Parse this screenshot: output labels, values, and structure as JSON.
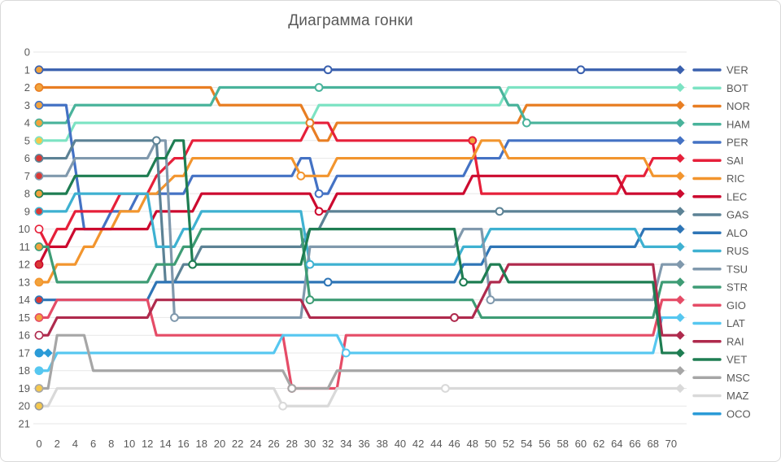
{
  "title": "Диаграмма гонки",
  "chart_data": {
    "type": "line",
    "title": "Диаграмма гонки",
    "xlabel": "",
    "ylabel": "",
    "x_ticks": [
      0,
      2,
      4,
      6,
      8,
      10,
      12,
      14,
      16,
      18,
      20,
      22,
      24,
      26,
      28,
      30,
      32,
      34,
      36,
      38,
      40,
      42,
      44,
      46,
      48,
      50,
      52,
      54,
      56,
      58,
      60,
      62,
      64,
      66,
      68,
      70
    ],
    "y_ticks": [
      0,
      1,
      2,
      3,
      4,
      5,
      6,
      7,
      8,
      9,
      10,
      11,
      12,
      13,
      14,
      15,
      16,
      17,
      18,
      19,
      20,
      21
    ],
    "x_range": [
      0,
      71
    ],
    "y_range": [
      0,
      21
    ],
    "y_inverted": true,
    "grid": "horizontal",
    "legend_position": "right",
    "series": [
      {
        "name": "VER",
        "color": "#3A60AE",
        "start_dot": "#F2A33C",
        "pit_laps": [
          32,
          60
        ],
        "dnf": false,
        "points": [
          [
            0,
            1
          ],
          [
            71,
            1
          ]
        ]
      },
      {
        "name": "BOT",
        "color": "#7CE3C3",
        "start_dot": "#F5C84C",
        "pit_laps": [
          30
        ],
        "dnf": false,
        "points": [
          [
            0,
            5
          ],
          [
            3,
            5
          ],
          [
            4,
            4
          ],
          [
            30,
            4
          ],
          [
            31,
            3
          ],
          [
            51,
            3
          ],
          [
            52,
            2
          ],
          [
            71,
            2
          ]
        ]
      },
      {
        "name": "NOR",
        "color": "#E87E23",
        "start_dot": "#F2A33C",
        "pit_laps": [
          30
        ],
        "dnf": false,
        "points": [
          [
            0,
            2
          ],
          [
            19,
            2
          ],
          [
            20,
            3
          ],
          [
            29,
            3
          ],
          [
            31,
            5
          ],
          [
            32,
            5
          ],
          [
            33,
            4
          ],
          [
            53,
            4
          ],
          [
            54,
            3
          ],
          [
            71,
            3
          ]
        ]
      },
      {
        "name": "HAM",
        "color": "#49B39B",
        "start_dot": "#F2A33C",
        "pit_laps": [
          31,
          54
        ],
        "dnf": false,
        "points": [
          [
            0,
            4
          ],
          [
            3,
            4
          ],
          [
            4,
            3
          ],
          [
            19,
            3
          ],
          [
            20,
            2
          ],
          [
            51,
            2
          ],
          [
            52,
            3
          ],
          [
            53,
            3
          ],
          [
            54,
            4
          ],
          [
            71,
            4
          ]
        ]
      },
      {
        "name": "PER",
        "color": "#4472C4",
        "start_dot": "#F2A33C",
        "pit_laps": [
          31
        ],
        "dnf": false,
        "points": [
          [
            0,
            3
          ],
          [
            3,
            3
          ],
          [
            5,
            10
          ],
          [
            7,
            10
          ],
          [
            8,
            9
          ],
          [
            10,
            9
          ],
          [
            11,
            8
          ],
          [
            16,
            8
          ],
          [
            17,
            7
          ],
          [
            28,
            7
          ],
          [
            29,
            6
          ],
          [
            30,
            6
          ],
          [
            31,
            8
          ],
          [
            32,
            8
          ],
          [
            33,
            7
          ],
          [
            47,
            7
          ],
          [
            48,
            6
          ],
          [
            51,
            6
          ],
          [
            52,
            5
          ],
          [
            71,
            5
          ]
        ]
      },
      {
        "name": "SAI",
        "color": "#E6203A",
        "start_dot": "#FFFFFF",
        "pit_laps": [
          48
        ],
        "pit_fill": "#F2A33C",
        "dnf": false,
        "points": [
          [
            0,
            10
          ],
          [
            1,
            11
          ],
          [
            2,
            10
          ],
          [
            3,
            10
          ],
          [
            4,
            9
          ],
          [
            8,
            9
          ],
          [
            9,
            8
          ],
          [
            12,
            8
          ],
          [
            13,
            7
          ],
          [
            15,
            6
          ],
          [
            16,
            6
          ],
          [
            17,
            5
          ],
          [
            29,
            5
          ],
          [
            30,
            4
          ],
          [
            32,
            4
          ],
          [
            33,
            5
          ],
          [
            48,
            5
          ],
          [
            49,
            8
          ],
          [
            64,
            8
          ],
          [
            65,
            7
          ],
          [
            67,
            7
          ],
          [
            68,
            6
          ],
          [
            71,
            6
          ]
        ]
      },
      {
        "name": "RIC",
        "color": "#F2952E",
        "start_dot": "#F2A33C",
        "pit_laps": [
          29
        ],
        "dnf": false,
        "points": [
          [
            0,
            13
          ],
          [
            1,
            13
          ],
          [
            2,
            12
          ],
          [
            4,
            12
          ],
          [
            5,
            11
          ],
          [
            6,
            11
          ],
          [
            7,
            10
          ],
          [
            8,
            10
          ],
          [
            9,
            9
          ],
          [
            11,
            9
          ],
          [
            12,
            8
          ],
          [
            13,
            8
          ],
          [
            15,
            7
          ],
          [
            16,
            7
          ],
          [
            17,
            6
          ],
          [
            28,
            6
          ],
          [
            29,
            7
          ],
          [
            32,
            7
          ],
          [
            33,
            6
          ],
          [
            48,
            6
          ],
          [
            49,
            5
          ],
          [
            51,
            5
          ],
          [
            52,
            6
          ],
          [
            67,
            6
          ],
          [
            68,
            7
          ],
          [
            71,
            7
          ]
        ]
      },
      {
        "name": "LEC",
        "color": "#CC0A2F",
        "start_dot": "#D93A36",
        "pit_laps": [
          31
        ],
        "dnf": false,
        "points": [
          [
            0,
            12
          ],
          [
            1,
            11
          ],
          [
            3,
            11
          ],
          [
            4,
            10
          ],
          [
            12,
            10
          ],
          [
            13,
            9
          ],
          [
            17,
            9
          ],
          [
            18,
            8
          ],
          [
            30,
            8
          ],
          [
            31,
            9
          ],
          [
            32,
            9
          ],
          [
            33,
            8
          ],
          [
            47,
            8
          ],
          [
            48,
            7
          ],
          [
            64,
            7
          ],
          [
            65,
            8
          ],
          [
            71,
            8
          ]
        ]
      },
      {
        "name": "GAS",
        "color": "#5C8295",
        "start_dot": "#D93A36",
        "pit_laps": [
          13,
          51
        ],
        "dnf": false,
        "points": [
          [
            0,
            6
          ],
          [
            3,
            6
          ],
          [
            4,
            5
          ],
          [
            13,
            5
          ],
          [
            14,
            13
          ],
          [
            15,
            13
          ],
          [
            16,
            12
          ],
          [
            17,
            12
          ],
          [
            18,
            11
          ],
          [
            29,
            11
          ],
          [
            30,
            10
          ],
          [
            31,
            10
          ],
          [
            32,
            9
          ],
          [
            71,
            9
          ]
        ]
      },
      {
        "name": "ALO",
        "color": "#2E75B6",
        "start_dot": "#D93A36",
        "pit_laps": [
          32
        ],
        "dnf": false,
        "points": [
          [
            0,
            14
          ],
          [
            12,
            14
          ],
          [
            13,
            13
          ],
          [
            46,
            13
          ],
          [
            47,
            12
          ],
          [
            49,
            12
          ],
          [
            50,
            11
          ],
          [
            66,
            11
          ],
          [
            67,
            10
          ],
          [
            71,
            10
          ]
        ]
      },
      {
        "name": "RUS",
        "color": "#3EB1D1",
        "start_dot": "#D93A36",
        "pit_laps": [
          30
        ],
        "dnf": false,
        "points": [
          [
            0,
            9
          ],
          [
            3,
            9
          ],
          [
            4,
            8
          ],
          [
            12,
            8
          ],
          [
            13,
            11
          ],
          [
            15,
            11
          ],
          [
            16,
            10
          ],
          [
            17,
            10
          ],
          [
            18,
            9
          ],
          [
            29,
            9
          ],
          [
            30,
            12
          ],
          [
            46,
            12
          ],
          [
            47,
            11
          ],
          [
            49,
            11
          ],
          [
            50,
            10
          ],
          [
            66,
            10
          ],
          [
            67,
            11
          ],
          [
            71,
            11
          ]
        ]
      },
      {
        "name": "TSU",
        "color": "#8099AD",
        "start_dot": "#D93A36",
        "pit_laps": [
          15,
          50
        ],
        "dnf": false,
        "points": [
          [
            0,
            7
          ],
          [
            3,
            7
          ],
          [
            4,
            6
          ],
          [
            12,
            6
          ],
          [
            13,
            5
          ],
          [
            14,
            5
          ],
          [
            15,
            15
          ],
          [
            29,
            15
          ],
          [
            30,
            11
          ],
          [
            46,
            11
          ],
          [
            47,
            10
          ],
          [
            49,
            10
          ],
          [
            50,
            14
          ],
          [
            68,
            14
          ],
          [
            69,
            12
          ],
          [
            71,
            12
          ]
        ]
      },
      {
        "name": "STR",
        "color": "#3E9C75",
        "start_dot": "#F2A33C",
        "pit_laps": [
          30
        ],
        "dnf": false,
        "points": [
          [
            0,
            11
          ],
          [
            1,
            11
          ],
          [
            2,
            13
          ],
          [
            12,
            13
          ],
          [
            13,
            12
          ],
          [
            15,
            12
          ],
          [
            16,
            11
          ],
          [
            17,
            11
          ],
          [
            18,
            10
          ],
          [
            29,
            10
          ],
          [
            30,
            14
          ],
          [
            48,
            14
          ],
          [
            49,
            15
          ],
          [
            68,
            15
          ],
          [
            69,
            13
          ],
          [
            71,
            13
          ]
        ]
      },
      {
        "name": "GIO",
        "color": "#E54C67",
        "start_dot": "#F2A33C",
        "pit_laps": [
          28
        ],
        "dnf": false,
        "points": [
          [
            0,
            15
          ],
          [
            1,
            15
          ],
          [
            2,
            14
          ],
          [
            12,
            14
          ],
          [
            13,
            16
          ],
          [
            27,
            16
          ],
          [
            28,
            19
          ],
          [
            33,
            19
          ],
          [
            34,
            16
          ],
          [
            68,
            16
          ],
          [
            69,
            14
          ],
          [
            71,
            14
          ]
        ]
      },
      {
        "name": "LAT",
        "color": "#56C7F0",
        "start_dot": "#56C7F0",
        "pit_laps": [
          34
        ],
        "dnf": false,
        "points": [
          [
            0,
            18
          ],
          [
            1,
            18
          ],
          [
            2,
            17
          ],
          [
            26,
            17
          ],
          [
            27,
            16
          ],
          [
            33,
            16
          ],
          [
            34,
            17
          ],
          [
            68,
            17
          ],
          [
            69,
            15
          ],
          [
            71,
            15
          ]
        ]
      },
      {
        "name": "RAI",
        "color": "#AF2A4D",
        "start_dot": "#FFFFFF",
        "pit_laps": [
          46
        ],
        "dnf": false,
        "points": [
          [
            0,
            16
          ],
          [
            1,
            16
          ],
          [
            2,
            15
          ],
          [
            12,
            15
          ],
          [
            13,
            14
          ],
          [
            29,
            14
          ],
          [
            30,
            15
          ],
          [
            48,
            15
          ],
          [
            49,
            14
          ],
          [
            50,
            13
          ],
          [
            51,
            13
          ],
          [
            52,
            12
          ],
          [
            68,
            12
          ],
          [
            69,
            16
          ],
          [
            71,
            16
          ]
        ]
      },
      {
        "name": "VET",
        "color": "#1E7D52",
        "start_dot": "#F2A33C",
        "pit_laps": [
          17,
          47
        ],
        "dnf": false,
        "points": [
          [
            0,
            8
          ],
          [
            3,
            8
          ],
          [
            4,
            7
          ],
          [
            12,
            7
          ],
          [
            13,
            6
          ],
          [
            14,
            6
          ],
          [
            15,
            5
          ],
          [
            16,
            5
          ],
          [
            17,
            12
          ],
          [
            29,
            12
          ],
          [
            30,
            10
          ],
          [
            46,
            10
          ],
          [
            47,
            13
          ],
          [
            49,
            13
          ],
          [
            50,
            12
          ],
          [
            51,
            12
          ],
          [
            52,
            13
          ],
          [
            68,
            13
          ],
          [
            69,
            17
          ],
          [
            71,
            17
          ]
        ]
      },
      {
        "name": "MSC",
        "color": "#A6A6A6",
        "start_dot": "#F5C84C",
        "pit_laps": [
          28
        ],
        "dnf": false,
        "points": [
          [
            0,
            19
          ],
          [
            1,
            19
          ],
          [
            2,
            16
          ],
          [
            5,
            16
          ],
          [
            6,
            18
          ],
          [
            27,
            18
          ],
          [
            28,
            19
          ],
          [
            32,
            19
          ],
          [
            33,
            18
          ],
          [
            71,
            18
          ]
        ]
      },
      {
        "name": "MAZ",
        "color": "#D9D9D9",
        "start_dot": "#F5C84C",
        "pit_laps": [
          27,
          45
        ],
        "dnf": false,
        "points": [
          [
            0,
            20
          ],
          [
            1,
            20
          ],
          [
            2,
            19
          ],
          [
            26,
            19
          ],
          [
            27,
            20
          ],
          [
            32,
            20
          ],
          [
            33,
            19
          ],
          [
            71,
            19
          ]
        ]
      },
      {
        "name": "OCO",
        "color": "#2B9BD7",
        "start_dot": "#2B9BD7",
        "pit_laps": [],
        "dnf": true,
        "points": [
          [
            0,
            17
          ],
          [
            1,
            17
          ]
        ]
      }
    ]
  }
}
